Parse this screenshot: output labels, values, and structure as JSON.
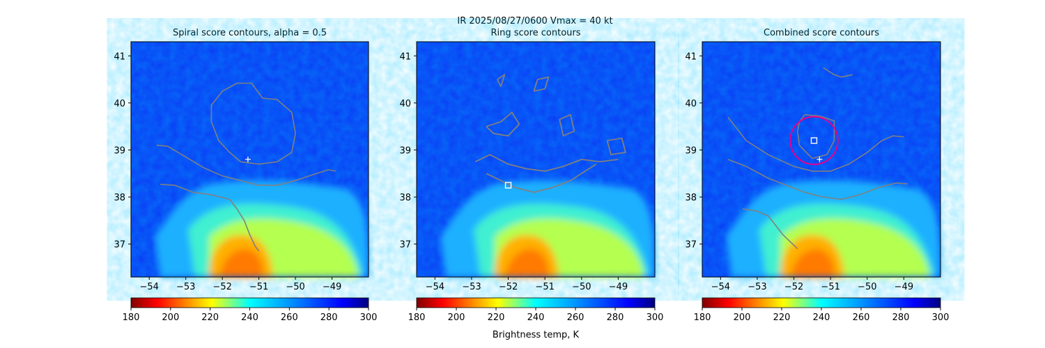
{
  "figure": {
    "suptitle_line1": "IR  2025/08/27/0600    Vmax = 40 kt",
    "colorbar_label": "Brightness temp, K"
  },
  "colors": {
    "contour": "#808080",
    "circle": "#e6008c",
    "marker": "#ffffff",
    "colormap": "jet_r"
  },
  "chart_data": [
    {
      "type": "heatmap",
      "title": "Spiral score contours, alpha =  0.5",
      "xlim": [
        -54.5,
        -48.0
      ],
      "ylim": [
        36.3,
        41.3
      ],
      "xticks": [
        -54,
        -53,
        -52,
        -51,
        -50,
        -49
      ],
      "yticks": [
        37,
        38,
        39,
        40,
        41
      ],
      "xtick_labels": [
        "−54",
        "−53",
        "−52",
        "−51",
        "−50",
        "−49"
      ],
      "ytick_labels": [
        "37",
        "38",
        "39",
        "40",
        "41"
      ],
      "colorbar": {
        "range": [
          180,
          300
        ],
        "ticks": [
          "180",
          "200",
          "220",
          "240",
          "260",
          "280",
          "300"
        ],
        "orientation": "horizontal",
        "colormap": "jet_r"
      },
      "markers": [
        {
          "symbol": "+",
          "lon": -51.3,
          "lat": 38.8
        }
      ],
      "contours": [
        [
          [
            -52.3,
            39.6
          ],
          [
            -52.3,
            39.95
          ],
          [
            -52.0,
            40.25
          ],
          [
            -51.6,
            40.42
          ],
          [
            -51.2,
            40.42
          ],
          [
            -50.9,
            40.1
          ],
          [
            -50.5,
            40.07
          ],
          [
            -50.1,
            39.8
          ],
          [
            -50.0,
            39.35
          ],
          [
            -50.1,
            38.95
          ],
          [
            -50.5,
            38.75
          ],
          [
            -51.0,
            38.7
          ],
          [
            -51.5,
            38.75
          ],
          [
            -51.8,
            38.95
          ],
          [
            -52.1,
            39.2
          ],
          [
            -52.3,
            39.6
          ]
        ],
        [
          [
            -53.8,
            39.1
          ],
          [
            -53.5,
            39.08
          ],
          [
            -53.0,
            38.85
          ],
          [
            -52.5,
            38.62
          ],
          [
            -52.0,
            38.45
          ],
          [
            -51.5,
            38.35
          ],
          [
            -51.0,
            38.25
          ],
          [
            -50.5,
            38.25
          ],
          [
            -50.0,
            38.35
          ],
          [
            -49.5,
            38.48
          ],
          [
            -49.1,
            38.58
          ],
          [
            -48.9,
            38.55
          ]
        ],
        [
          [
            -53.7,
            38.27
          ],
          [
            -53.3,
            38.25
          ],
          [
            -52.8,
            38.1
          ],
          [
            -52.3,
            38.05
          ],
          [
            -51.8,
            37.95
          ],
          [
            -51.6,
            37.75
          ],
          [
            -51.4,
            37.5
          ],
          [
            -51.25,
            37.2
          ],
          [
            -51.1,
            36.95
          ],
          [
            -51.0,
            36.85
          ]
        ]
      ]
    },
    {
      "type": "heatmap",
      "title": "Ring score contours",
      "xlim": [
        -54.5,
        -48.0
      ],
      "ylim": [
        36.3,
        41.3
      ],
      "xticks": [
        -54,
        -53,
        -52,
        -51,
        -50,
        -49
      ],
      "yticks": [
        37,
        38,
        39,
        40,
        41
      ],
      "xtick_labels": [
        "−54",
        "−53",
        "−52",
        "−51",
        "−50",
        "−49"
      ],
      "ytick_labels": [
        "37",
        "38",
        "39",
        "40",
        "41"
      ],
      "colorbar": {
        "range": [
          180,
          300
        ],
        "ticks": [
          "180",
          "200",
          "220",
          "240",
          "260",
          "280",
          "300"
        ],
        "orientation": "horizontal",
        "colormap": "jet_r"
      },
      "markers": [
        {
          "symbol": "square",
          "lon": -52.0,
          "lat": 38.25
        }
      ],
      "contours": [
        [
          [
            -52.9,
            38.75
          ],
          [
            -52.5,
            38.9
          ],
          [
            -52.0,
            38.7
          ],
          [
            -51.5,
            38.6
          ],
          [
            -51.0,
            38.55
          ],
          [
            -50.5,
            38.65
          ],
          [
            -50.0,
            38.8
          ],
          [
            -49.5,
            38.75
          ],
          [
            -49.0,
            38.8
          ]
        ],
        [
          [
            -52.6,
            38.5
          ],
          [
            -52.2,
            38.35
          ],
          [
            -51.8,
            38.2
          ],
          [
            -51.3,
            38.1
          ],
          [
            -50.8,
            38.2
          ],
          [
            -50.3,
            38.35
          ],
          [
            -49.9,
            38.55
          ],
          [
            -49.6,
            38.7
          ]
        ],
        [
          [
            -52.6,
            39.5
          ],
          [
            -52.2,
            39.6
          ],
          [
            -51.9,
            39.8
          ],
          [
            -51.7,
            39.55
          ],
          [
            -52.0,
            39.3
          ],
          [
            -52.4,
            39.35
          ],
          [
            -52.6,
            39.5
          ]
        ],
        [
          [
            -51.3,
            40.25
          ],
          [
            -51.0,
            40.3
          ],
          [
            -50.9,
            40.55
          ],
          [
            -51.2,
            40.5
          ],
          [
            -51.3,
            40.25
          ]
        ],
        [
          [
            -52.3,
            40.5
          ],
          [
            -52.1,
            40.6
          ],
          [
            -52.2,
            40.35
          ],
          [
            -52.3,
            40.5
          ]
        ],
        [
          [
            -49.3,
            39.2
          ],
          [
            -48.9,
            39.25
          ],
          [
            -48.8,
            38.95
          ],
          [
            -49.2,
            38.9
          ],
          [
            -49.3,
            39.2
          ]
        ],
        [
          [
            -50.6,
            39.65
          ],
          [
            -50.3,
            39.75
          ],
          [
            -50.2,
            39.4
          ],
          [
            -50.5,
            39.3
          ],
          [
            -50.6,
            39.65
          ]
        ]
      ]
    },
    {
      "type": "heatmap",
      "title": "Combined score contours",
      "xlim": [
        -54.5,
        -48.0
      ],
      "ylim": [
        36.3,
        41.3
      ],
      "xticks": [
        -54,
        -53,
        -52,
        -51,
        -50,
        -49
      ],
      "yticks": [
        37,
        38,
        39,
        40,
        41
      ],
      "xtick_labels": [
        "−54",
        "−53",
        "−52",
        "−51",
        "−50",
        "−49"
      ],
      "ytick_labels": [
        "37",
        "38",
        "39",
        "40",
        "41"
      ],
      "colorbar": {
        "range": [
          180,
          300
        ],
        "ticks": [
          "180",
          "200",
          "220",
          "240",
          "260",
          "280",
          "300"
        ],
        "orientation": "horizontal",
        "colormap": "jet_r"
      },
      "markers": [
        {
          "symbol": "+",
          "lon": -51.3,
          "lat": 38.8
        },
        {
          "symbol": "square",
          "lon": -51.45,
          "lat": 39.2
        }
      ],
      "circle": {
        "lon": -51.45,
        "lat": 39.2,
        "radius_deg": 0.65
      },
      "contours": [
        [
          [
            -51.2,
            40.75
          ],
          [
            -50.9,
            40.6
          ],
          [
            -50.7,
            40.55
          ],
          [
            -50.4,
            40.6
          ]
        ],
        [
          [
            -51.85,
            39.6
          ],
          [
            -51.7,
            39.75
          ],
          [
            -51.3,
            39.72
          ],
          [
            -50.9,
            39.62
          ],
          [
            -50.9,
            39.2
          ],
          [
            -51.1,
            38.9
          ],
          [
            -51.5,
            38.82
          ],
          [
            -51.85,
            39.1
          ],
          [
            -51.9,
            39.4
          ],
          [
            -51.85,
            39.6
          ]
        ],
        [
          [
            -53.8,
            39.7
          ],
          [
            -53.3,
            39.2
          ],
          [
            -52.7,
            38.9
          ],
          [
            -52.0,
            38.65
          ],
          [
            -51.5,
            38.55
          ],
          [
            -51.0,
            38.55
          ],
          [
            -50.5,
            38.7
          ],
          [
            -50.0,
            38.95
          ],
          [
            -49.6,
            39.2
          ],
          [
            -49.3,
            39.3
          ],
          [
            -49.0,
            39.28
          ]
        ],
        [
          [
            -53.8,
            38.8
          ],
          [
            -53.3,
            38.65
          ],
          [
            -52.7,
            38.4
          ],
          [
            -52.2,
            38.25
          ],
          [
            -51.7,
            38.1
          ],
          [
            -51.2,
            38.0
          ],
          [
            -50.7,
            37.95
          ],
          [
            -50.2,
            38.05
          ],
          [
            -49.7,
            38.2
          ],
          [
            -49.2,
            38.3
          ],
          [
            -48.9,
            38.28
          ]
        ],
        [
          [
            -53.4,
            37.75
          ],
          [
            -53.0,
            37.7
          ],
          [
            -52.7,
            37.6
          ],
          [
            -52.5,
            37.4
          ],
          [
            -52.3,
            37.2
          ],
          [
            -52.1,
            37.05
          ],
          [
            -51.9,
            36.9
          ]
        ]
      ]
    }
  ]
}
